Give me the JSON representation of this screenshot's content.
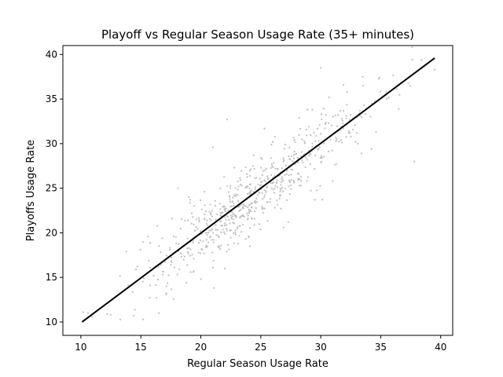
{
  "chart_data": {
    "type": "scatter",
    "title": "Playoff vs Regular Season Usage Rate (35+ minutes)",
    "xlabel": "Regular Season Usage Rate",
    "ylabel": "Playoffs Usage Rate",
    "xlim": [
      8.5,
      41
    ],
    "ylim": [
      8.5,
      41
    ],
    "xticks": [
      10,
      15,
      20,
      25,
      30,
      35,
      40
    ],
    "yticks": [
      10,
      15,
      20,
      25,
      30,
      35,
      40
    ],
    "grid": false,
    "point_color": "#c0c0c0",
    "line_color": "#000000",
    "fit_line": {
      "x": [
        10.1,
        39.5
      ],
      "y": [
        10.0,
        39.6
      ]
    },
    "scatter_seed": 7,
    "scatter_count": 640,
    "points": [
      [
        10.2,
        11.1
      ],
      [
        10.6,
        11.0
      ],
      [
        12.5,
        10.8
      ],
      [
        12.2,
        10.9
      ],
      [
        13.8,
        17.9
      ],
      [
        14.5,
        11.4
      ],
      [
        14.4,
        10.7
      ],
      [
        14.6,
        15.9
      ],
      [
        15.2,
        10.3
      ],
      [
        15.6,
        19.6
      ],
      [
        16.5,
        11.0
      ],
      [
        18.1,
        25.0
      ],
      [
        21.1,
        13.8
      ],
      [
        21.0,
        29.6
      ],
      [
        22.2,
        32.7
      ],
      [
        25.3,
        31.7
      ],
      [
        30.0,
        38.5
      ],
      [
        33.5,
        37.5
      ],
      [
        34.9,
        37.4
      ],
      [
        36.5,
        33.9
      ],
      [
        37.8,
        28.0
      ],
      [
        39.5,
        38.3
      ],
      [
        31.9,
        36.6
      ],
      [
        32.9,
        30.2
      ],
      [
        33.4,
        28.9
      ],
      [
        29.5,
        23.7
      ],
      [
        31.0,
        25.8
      ],
      [
        27.3,
        21.2
      ],
      [
        26.9,
        20.6
      ],
      [
        24.1,
        18.5
      ],
      [
        22.0,
        16.0
      ],
      [
        20.0,
        14.8
      ],
      [
        18.8,
        14.4
      ],
      [
        17.1,
        13.1
      ],
      [
        16.3,
        12.7
      ],
      [
        17.6,
        21.6
      ],
      [
        19.1,
        23.7
      ],
      [
        20.3,
        24.6
      ],
      [
        22.8,
        27.3
      ],
      [
        24.4,
        28.7
      ],
      [
        26.0,
        30.2
      ],
      [
        28.2,
        32.9
      ],
      [
        29.3,
        33.8
      ],
      [
        30.7,
        35.2
      ],
      [
        32.2,
        35.8
      ]
    ]
  }
}
